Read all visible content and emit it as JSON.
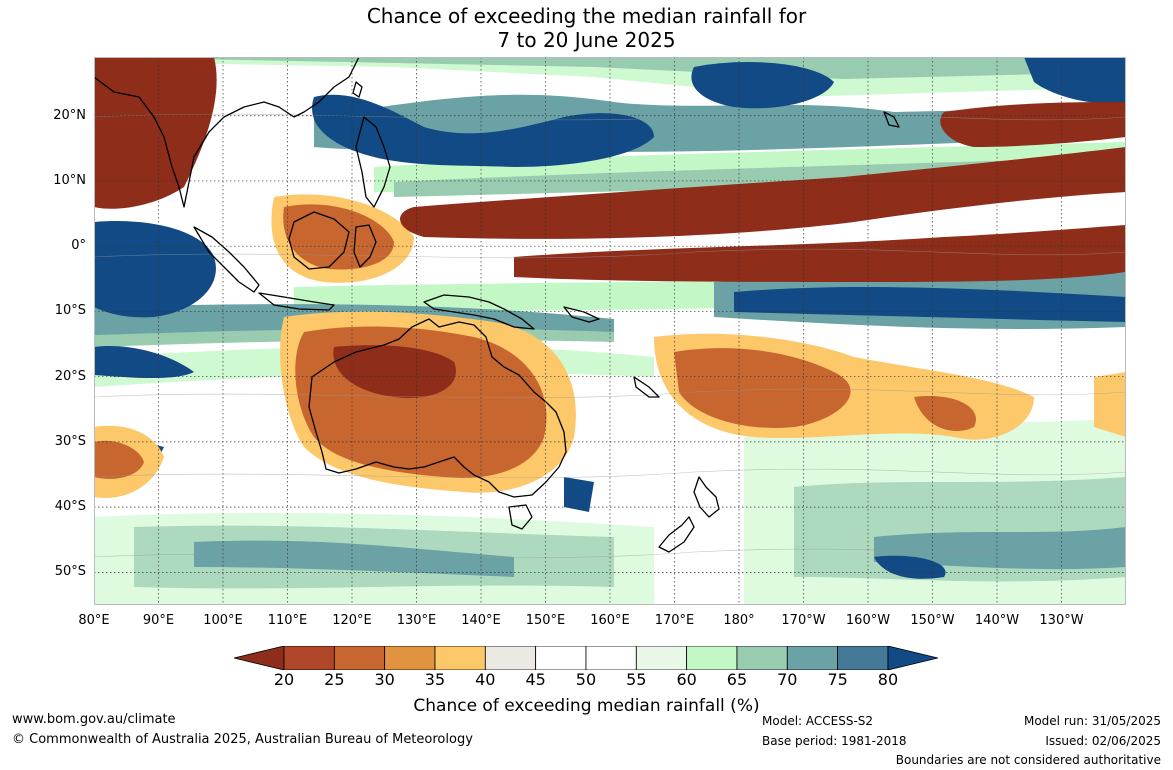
{
  "title_line1": "Chance of exceeding the median rainfall for",
  "title_line2": "7 to 20 June 2025",
  "map": {
    "lat_labels": [
      "20°N",
      "10°N",
      "0°",
      "10°S",
      "20°S",
      "30°S",
      "40°S",
      "50°S"
    ],
    "lon_labels": [
      "80°E",
      "90°E",
      "100°E",
      "110°E",
      "120°E",
      "130°E",
      "140°E",
      "150°E",
      "160°E",
      "170°E",
      "180°",
      "170°W",
      "160°W",
      "150°W",
      "140°W",
      "130°W"
    ],
    "lat_range": [
      -55,
      29
    ],
    "lon_range": [
      80,
      240
    ]
  },
  "colorbar": {
    "ticks": [
      "20",
      "25",
      "30",
      "35",
      "40",
      "45",
      "50",
      "55",
      "60",
      "65",
      "70",
      "75",
      "80"
    ],
    "colors": [
      "#8e2d1a",
      "#b0472a",
      "#c8662f",
      "#e2933f",
      "#fdc86a",
      "#ebe9e2",
      "#ffffff",
      "#ffffff",
      "#e9f7e8",
      "#c3f8c6",
      "#98cbb0",
      "#6aa2a6",
      "#447a98",
      "#114a85"
    ],
    "label": "Chance of exceeding median rainfall (%)"
  },
  "footer": {
    "website": "www.bom.gov.au/climate",
    "copyright": "© Commonwealth of Australia 2025, Australian Bureau of Meteorology",
    "model": "Model: ACCESS-S2",
    "base_period": "Base period: 1981-2018",
    "model_run": "Model run: 31/05/2025",
    "issued": "Issued: 02/06/2025",
    "disclaimer": "Boundaries are not considered authoritative"
  }
}
